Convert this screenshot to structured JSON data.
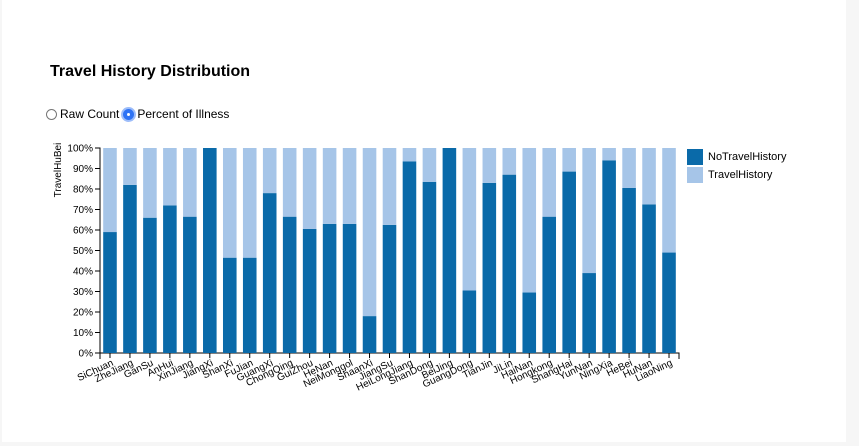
{
  "controls": {
    "options": [
      {
        "label": "Raw Count",
        "selected": false
      },
      {
        "label": "Percent of Illness",
        "selected": true
      }
    ]
  },
  "chart_data": {
    "type": "bar",
    "stacked": true,
    "title": "Travel History Distribution",
    "xlabel": "",
    "ylabel": "TravelHuBei",
    "ylim": [
      0,
      100
    ],
    "y_ticks": [
      "0%",
      "10%",
      "20%",
      "30%",
      "40%",
      "50%",
      "60%",
      "70%",
      "80%",
      "90%",
      "100%"
    ],
    "grid": false,
    "legend_position": "right",
    "categories": [
      "SiChuan",
      "ZheJiang",
      "GanSu",
      "AnHui",
      "XinJiang",
      "JiangXi",
      "ShanXi",
      "FuJian",
      "GuangXi",
      "ChongQing",
      "GuiZhou",
      "HeNan",
      "NeiMonggol",
      "ShaanXi",
      "JiangSu",
      "HeiLongJiang",
      "ShanDong",
      "BeiJing",
      "GuangDong",
      "TianJin",
      "JiLin",
      "HaiNan",
      "Hongkong",
      "ShangHai",
      "YunNan",
      "NingXia",
      "HeBei",
      "HuNan",
      "LiaoNing"
    ],
    "series": [
      {
        "name": "NoTravelHistory",
        "color": "#0a6aa9",
        "values": [
          59,
          82,
          66,
          72,
          66.5,
          100,
          46.5,
          46.5,
          78,
          66.5,
          60.5,
          63,
          63,
          18,
          62.5,
          93.5,
          83.5,
          100,
          30.5,
          83,
          87,
          29.5,
          66.5,
          88.5,
          39,
          94,
          80.5,
          72.5,
          49
        ]
      },
      {
        "name": "TravelHistory",
        "color": "#a6c5e8",
        "values": [
          41,
          18,
          34,
          28,
          33.5,
          0,
          53.5,
          53.5,
          22,
          33.5,
          39.5,
          37,
          37,
          82,
          37.5,
          6.5,
          16.5,
          0,
          69.5,
          17,
          13,
          70.5,
          33.5,
          11.5,
          61,
          6,
          19.5,
          27.5,
          51
        ]
      }
    ]
  }
}
